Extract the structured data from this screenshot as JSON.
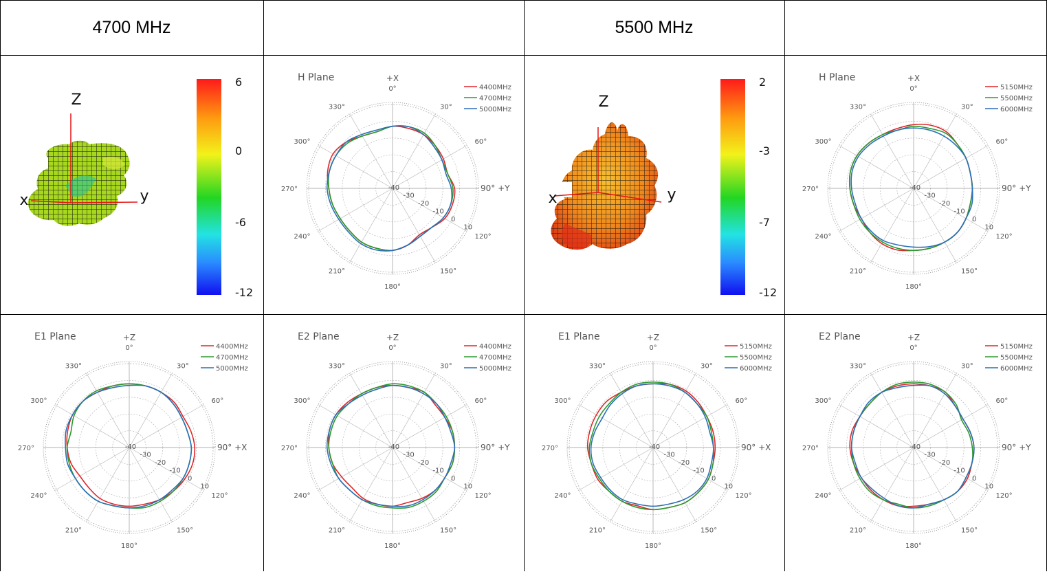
{
  "table": {
    "headers": [
      "4700 MHz",
      "",
      "5500 MHz",
      ""
    ]
  },
  "colors": {
    "red": "#e0262a",
    "green": "#2a9a2e",
    "blue": "#2c6fb8",
    "grid": "#b9b9b9"
  },
  "colorbars": [
    {
      "labels": [
        "6",
        "0",
        "-6",
        "-12"
      ]
    },
    {
      "labels": [
        "2",
        "-3",
        "-7",
        "-12"
      ]
    }
  ],
  "pattern3d": [
    {
      "axis_labels": [
        "Z",
        "x",
        "y"
      ]
    },
    {
      "axis_labels": [
        "Z",
        "x",
        "y"
      ]
    }
  ],
  "chart_data": [
    {
      "type": "polar",
      "title": "H Plane",
      "top_axis": "+X",
      "right_axis": "90° +Y",
      "rlim": [
        -40,
        10
      ],
      "radial_ticks": [
        "-40",
        "-30",
        "-20",
        "-10",
        "0",
        "10"
      ],
      "angle_ticks": [
        "0°",
        "30°",
        "60°",
        "90°",
        "120°",
        "150°",
        "180°",
        "210°",
        "240°",
        "270°",
        "300°",
        "330°"
      ],
      "series": [
        {
          "name": "4400MHz",
          "color": "#e0262a",
          "values": [
            -3,
            -3,
            -3,
            -4,
            -5,
            -6,
            -3,
            -3,
            -4,
            -7,
            -8,
            -5,
            -3,
            -3,
            -3,
            -4,
            -4,
            -3,
            -2,
            0,
            1,
            -1,
            -4,
            -5
          ]
        },
        {
          "name": "4700MHz",
          "color": "#2a9a2e",
          "values": [
            -3,
            -2,
            -2,
            -4,
            -6,
            -6,
            -4,
            -4,
            -5,
            -7,
            -7,
            -5,
            -3,
            -3,
            -3,
            -4,
            -4,
            -3,
            -2,
            -1,
            -1,
            -2,
            -4,
            -5
          ]
        },
        {
          "name": "5000MHz",
          "color": "#2c6fb8",
          "values": [
            -3,
            -2,
            -3,
            -5,
            -6,
            -7,
            -5,
            -4,
            -5,
            -7,
            -7,
            -5,
            -3,
            -2,
            -2,
            -3,
            -3,
            -2,
            -1,
            -1,
            -1,
            -1,
            -3,
            -4
          ]
        }
      ]
    },
    {
      "type": "polar",
      "title": "H Plane",
      "top_axis": "+X",
      "right_axis": "90° +Y",
      "rlim": [
        -40,
        10
      ],
      "radial_ticks": [
        "-40",
        "-30",
        "-20",
        "-10",
        "0",
        "10"
      ],
      "angle_ticks": [
        "0°",
        "30°",
        "60°",
        "90°",
        "120°",
        "150°",
        "180°",
        "210°",
        "240°",
        "270°",
        "300°",
        "330°"
      ],
      "series": [
        {
          "name": "5150MHz",
          "color": "#e0262a",
          "values": [
            -2,
            -1,
            -1,
            -3,
            -4,
            -5,
            -5,
            -5,
            -4,
            -3,
            -3,
            -3,
            -3,
            -2,
            -2,
            -3,
            -4,
            -3,
            -2,
            -1,
            -1,
            -2,
            -3,
            -3
          ]
        },
        {
          "name": "5500MHz",
          "color": "#2a9a2e",
          "values": [
            -3,
            -3,
            -2,
            -3,
            -4,
            -5,
            -5,
            -5,
            -4,
            -3,
            -3,
            -3,
            -3,
            -3,
            -3,
            -3,
            -3,
            -3,
            -2,
            -1,
            -1,
            -2,
            -3,
            -4
          ]
        },
        {
          "name": "6000MHz",
          "color": "#2c6fb8",
          "values": [
            -4,
            -4,
            -4,
            -4,
            -4,
            -5,
            -5,
            -4,
            -4,
            -3,
            -3,
            -4,
            -5,
            -5,
            -4,
            -4,
            -4,
            -4,
            -3,
            -2,
            -2,
            -3,
            -4,
            -4
          ]
        }
      ]
    },
    {
      "type": "polar",
      "title": "E1 Plane",
      "top_axis": "+Z",
      "right_axis": "90° +X",
      "rlim": [
        -40,
        10
      ],
      "radial_ticks": [
        "-40",
        "-30",
        "-20",
        "-10",
        "0",
        "10"
      ],
      "angle_ticks": [
        "0°",
        "30°",
        "60°",
        "90°",
        "120°",
        "150°",
        "180°",
        "210°",
        "240°",
        "270°",
        "300°",
        "330°"
      ],
      "series": [
        {
          "name": "4400MHz",
          "color": "#e0262a",
          "values": [
            -2,
            -2,
            -2,
            -2,
            -3,
            -2,
            -1,
            -1,
            -2,
            -3,
            -4,
            -5,
            -5,
            -5,
            -5,
            -6,
            -6,
            -4,
            -3,
            -2,
            -1,
            -1,
            -2,
            -2
          ]
        },
        {
          "name": "4700MHz",
          "color": "#2a9a2e",
          "values": [
            -2,
            -2,
            -2,
            -3,
            -4,
            -4,
            -3,
            -3,
            -3,
            -3,
            -3,
            -3,
            -4,
            -4,
            -3,
            -3,
            -3,
            -3,
            -3,
            -4,
            -2,
            -1,
            -1,
            -2
          ]
        },
        {
          "name": "5000MHz",
          "color": "#2c6fb8",
          "values": [
            -3,
            -2,
            -2,
            -3,
            -4,
            -4,
            -3,
            -3,
            -3,
            -4,
            -4,
            -4,
            -4,
            -4,
            -3,
            -3,
            -3,
            -2,
            -2,
            -1,
            -1,
            -1,
            -2,
            -3
          ]
        }
      ]
    },
    {
      "type": "polar",
      "title": "E2 Plane",
      "top_axis": "+Z",
      "right_axis": "90° +Y",
      "rlim": [
        -40,
        10
      ],
      "radial_ticks": [
        "-40",
        "-30",
        "-20",
        "-10",
        "0",
        "10"
      ],
      "angle_ticks": [
        "0°",
        "30°",
        "60°",
        "90°",
        "120°",
        "150°",
        "180°",
        "210°",
        "240°",
        "270°",
        "300°",
        "330°"
      ],
      "series": [
        {
          "name": "4400MHz",
          "color": "#e0262a",
          "values": [
            -3,
            -3,
            -2,
            -4,
            -4,
            -3,
            -3,
            -3,
            -4,
            -4,
            -5,
            -6,
            -5,
            -5,
            -5,
            -6,
            -5,
            -3,
            -2,
            -1,
            -1,
            -2,
            -3,
            -3
          ]
        },
        {
          "name": "4700MHz",
          "color": "#2a9a2e",
          "values": [
            -2,
            -2,
            -2,
            -3,
            -3,
            -3,
            -3,
            -3,
            -4,
            -3,
            -3,
            -3,
            -4,
            -4,
            -4,
            -4,
            -3,
            -3,
            -2,
            -2,
            -2,
            -3,
            -3,
            -3
          ]
        },
        {
          "name": "5000MHz",
          "color": "#2c6fb8",
          "values": [
            -3,
            -3,
            -3,
            -3,
            -4,
            -4,
            -3,
            -4,
            -4,
            -4,
            -4,
            -4,
            -5,
            -5,
            -4,
            -4,
            -3,
            -2,
            -1,
            -1,
            -1,
            -3,
            -4,
            -4
          ]
        }
      ]
    },
    {
      "type": "polar",
      "title": "E1 Plane",
      "top_axis": "+Z",
      "right_axis": "90° +X",
      "rlim": [
        -40,
        10
      ],
      "radial_ticks": [
        "-40",
        "-30",
        "-20",
        "-10",
        "0",
        "10"
      ],
      "angle_ticks": [
        "0°",
        "30°",
        "60°",
        "90°",
        "120°",
        "150°",
        "180°",
        "210°",
        "240°",
        "270°",
        "300°",
        "330°"
      ],
      "series": [
        {
          "name": "5150MHz",
          "color": "#e0262a",
          "values": [
            -2,
            -1,
            -1,
            -2,
            -3,
            -3,
            -3,
            -3,
            -2,
            -2,
            -2,
            -3,
            -3,
            -4,
            -3,
            -3,
            -2,
            -2,
            -1,
            -1,
            -1,
            -1,
            -2,
            -2
          ]
        },
        {
          "name": "5500MHz",
          "color": "#2a9a2e",
          "values": [
            -1,
            -1,
            -2,
            -3,
            -3,
            -4,
            -4,
            -3,
            -2,
            -2,
            -2,
            -3,
            -3,
            -3,
            -3,
            -3,
            -3,
            -2,
            -2,
            -3,
            -3,
            -3,
            -2,
            -1
          ]
        },
        {
          "name": "6000MHz",
          "color": "#2c6fb8",
          "values": [
            -2,
            -2,
            -2,
            -3,
            -4,
            -5,
            -4,
            -4,
            -3,
            -3,
            -4,
            -5,
            -5,
            -5,
            -4,
            -4,
            -4,
            -3,
            -3,
            -4,
            -5,
            -4,
            -3,
            -2
          ]
        }
      ]
    },
    {
      "type": "polar",
      "title": "E2 Plane",
      "top_axis": "+Z",
      "right_axis": "90° +Y",
      "rlim": [
        -40,
        10
      ],
      "radial_ticks": [
        "-40",
        "-30",
        "-20",
        "-10",
        "0",
        "10"
      ],
      "angle_ticks": [
        "0°",
        "30°",
        "60°",
        "90°",
        "120°",
        "150°",
        "180°",
        "210°",
        "240°",
        "270°",
        "300°",
        "330°"
      ],
      "series": [
        {
          "name": "5150MHz",
          "color": "#e0262a",
          "values": [
            -2,
            -2,
            -2,
            -5,
            -6,
            -5,
            -4,
            -4,
            -3,
            -3,
            -4,
            -5,
            -5,
            -4,
            -4,
            -4,
            -4,
            -3,
            -2,
            -2,
            -3,
            -3,
            -2,
            -2
          ]
        },
        {
          "name": "5500MHz",
          "color": "#2a9a2e",
          "values": [
            -1,
            -1,
            -2,
            -4,
            -7,
            -6,
            -5,
            -4,
            -4,
            -3,
            -4,
            -4,
            -4,
            -5,
            -4,
            -3,
            -3,
            -3,
            -3,
            -3,
            -3,
            -3,
            -2,
            -1
          ]
        },
        {
          "name": "6000MHz",
          "color": "#2c6fb8",
          "values": [
            -3,
            -2,
            -3,
            -5,
            -6,
            -5,
            -4,
            -4,
            -4,
            -3,
            -4,
            -5,
            -4,
            -4,
            -5,
            -5,
            -4,
            -4,
            -3,
            -3,
            -3,
            -2,
            -2,
            -3
          ]
        }
      ]
    }
  ]
}
